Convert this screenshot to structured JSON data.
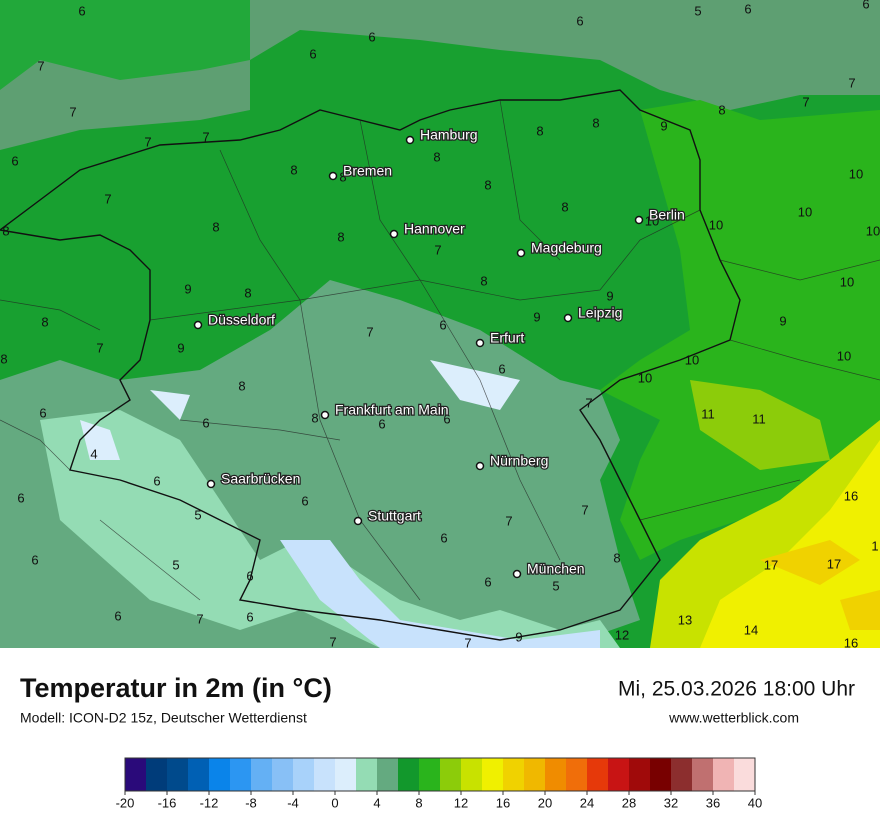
{
  "map": {
    "title": "Temperatur in 2m (in °C)",
    "model": "Modell: ICON-D2 15z, Deutscher Wetterdienst",
    "datetime": "Mi, 25.03.2026 18:00 Uhr",
    "website": "www.wetterblick.com",
    "cities": [
      "Hamburg",
      "Bremen",
      "Hannover",
      "Berlin",
      "Magdeburg",
      "Leipzig",
      "Düsseldorf",
      "Erfurt",
      "Frankfurt am Main",
      "Nürnberg",
      "Saarbrücken",
      "Stuttgart",
      "München"
    ],
    "values": [
      "6",
      "7",
      "7",
      "6",
      "7",
      "7",
      "6",
      "6",
      "6",
      "5",
      "6",
      "6",
      "7",
      "7",
      "8",
      "9",
      "8",
      "8",
      "8",
      "8",
      "8",
      "8",
      "8",
      "8",
      "7",
      "8",
      "8",
      "7",
      "8",
      "10",
      "10",
      "10",
      "10",
      "10",
      "10",
      "9",
      "10",
      "10",
      "10",
      "9",
      "9",
      "9",
      "8",
      "8",
      "7",
      "8",
      "9",
      "6",
      "7",
      "6",
      "8",
      "7",
      "11",
      "11",
      "6",
      "6",
      "8",
      "6",
      "6",
      "4",
      "6",
      "6",
      "5",
      "6",
      "9",
      "7",
      "7",
      "6",
      "16",
      "1",
      "17",
      "17",
      "6",
      "5",
      "6",
      "8",
      "6",
      "5",
      "6",
      "7",
      "6",
      "7",
      "7",
      "9",
      "12",
      "13",
      "14",
      "16"
    ],
    "colorbar": {
      "colors": [
        "#2a0a7a",
        "#003c7a",
        "#004a8c",
        "#0060b4",
        "#0a84ea",
        "#2c96f2",
        "#64b0f4",
        "#88c0f6",
        "#a8d2fa",
        "#c8e2fc",
        "#dceefc",
        "#94dcb4",
        "#64aa80",
        "#12982c",
        "#2ab41c",
        "#8ccc0a",
        "#c8e200",
        "#f0f000",
        "#f0d200",
        "#f0b800",
        "#f08c00",
        "#f06e0a",
        "#e6390a",
        "#c81414",
        "#a00a0a",
        "#780000",
        "#8c2e2e",
        "#c07070",
        "#f0b4b4",
        "#fadcdc"
      ],
      "ticks": [
        -20,
        -16,
        -12,
        -8,
        -4,
        0,
        4,
        8,
        12,
        16,
        20,
        24,
        28,
        32,
        36,
        40
      ]
    }
  }
}
